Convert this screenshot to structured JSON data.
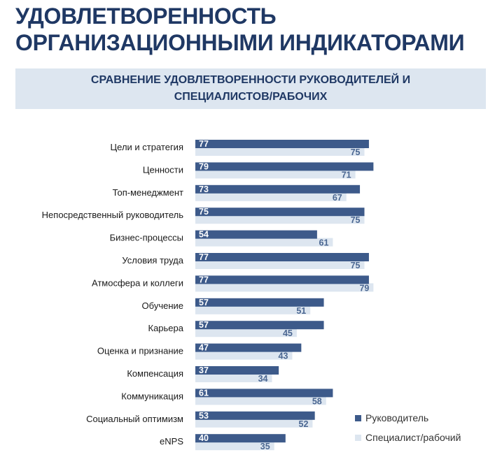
{
  "title": "УДОВЛЕТВОРЕННОСТЬ ОРГАНИЗАЦИОННЫМИ ИНДИКАТОРАМИ",
  "subtitle": "СРАВНЕНИЕ УДОВЛЕТВОРЕННОСТИ РУКОВОДИТЕЛЕЙ И СПЕЦИАЛИСТОВ/РАБОЧИХ",
  "colors": {
    "title": "#1f3864",
    "series_manager": "#3d5a8a",
    "series_specialist": "#dde6f0",
    "manager_label": "#ffffff",
    "specialist_label": "#4a6691"
  },
  "chart_data": {
    "type": "bar",
    "orientation": "horizontal",
    "title": "СРАВНЕНИЕ УДОВЛЕТВОРЕННОСТИ РУКОВОДИТЕЛЕЙ И СПЕЦИАЛИСТОВ/РАБОЧИХ",
    "xlim": [
      0,
      100
    ],
    "grid": false,
    "legend_position": "bottom-right",
    "categories": [
      "Цели и стратегия",
      "Ценности",
      "Топ-менеджмент",
      "Непосредственный руководитель",
      "Бизнес-процессы",
      "Условия труда",
      "Атмосфера и коллеги",
      "Обучение",
      "Карьера",
      "Оценка и признание",
      "Компенсация",
      "Коммуникация",
      "Социальный оптимизм",
      "eNPS"
    ],
    "series": [
      {
        "name": "Руководитель",
        "values": [
          77,
          79,
          73,
          75,
          54,
          77,
          77,
          57,
          57,
          47,
          37,
          61,
          53,
          40
        ]
      },
      {
        "name": "Специалист/рабочий",
        "values": [
          75,
          71,
          67,
          75,
          61,
          75,
          79,
          51,
          45,
          43,
          34,
          58,
          52,
          35
        ]
      }
    ]
  }
}
